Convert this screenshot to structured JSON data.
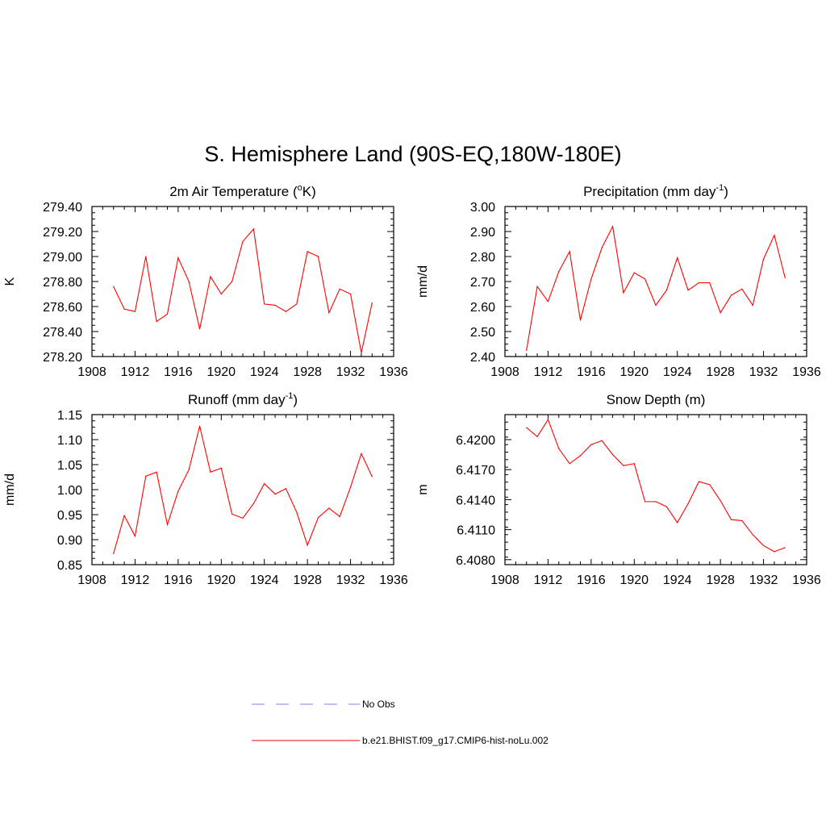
{
  "figure": {
    "title": "S. Hemisphere Land (90S-EQ,180W-180E)"
  },
  "legend": {
    "items": [
      {
        "label": "No Obs",
        "color": "#9999ff",
        "style": "dashed"
      },
      {
        "label": "b.e21.BHIST.f09_g17.CMIP6-hist-noLu.002",
        "color": "#ff0000",
        "style": "solid"
      }
    ]
  },
  "chart_data": [
    {
      "type": "line",
      "title": "2m Air Temperature (°K)",
      "title_main": "2m Air Temperature (",
      "title_sup": "o",
      "title_tail": "K)",
      "ylabel": "K",
      "xlabel": "",
      "xlim": [
        1908,
        1936
      ],
      "ylim": [
        278.2,
        279.4
      ],
      "xticks": [
        1908,
        1912,
        1916,
        1920,
        1924,
        1928,
        1932,
        1936
      ],
      "yticks": [
        "278.20",
        "278.40",
        "278.60",
        "278.80",
        "279.00",
        "279.20",
        "279.40"
      ],
      "yminor": 0.05,
      "series": [
        {
          "name": "b.e21.BHIST.f09_g17.CMIP6-hist-noLu.002",
          "color": "#ff0000",
          "x": [
            1910,
            1911,
            1912,
            1913,
            1914,
            1915,
            1916,
            1917,
            1918,
            1919,
            1920,
            1921,
            1922,
            1923,
            1924,
            1925,
            1926,
            1927,
            1928,
            1929,
            1930,
            1931,
            1932,
            1933,
            1934
          ],
          "y": [
            278.76,
            278.58,
            278.56,
            279.0,
            278.48,
            278.54,
            278.99,
            278.8,
            278.42,
            278.84,
            278.7,
            278.8,
            279.12,
            279.22,
            278.62,
            278.61,
            278.56,
            278.62,
            279.04,
            279.0,
            278.55,
            278.74,
            278.7,
            278.23,
            278.63
          ]
        }
      ]
    },
    {
      "type": "line",
      "title": "Precipitation (mm day-1)",
      "title_main": "Precipitation (mm day",
      "title_sup": "-1",
      "title_tail": ")",
      "ylabel": "mm/d",
      "xlabel": "",
      "xlim": [
        1908,
        1936
      ],
      "ylim": [
        2.4,
        3.0
      ],
      "xticks": [
        1908,
        1912,
        1916,
        1920,
        1924,
        1928,
        1932,
        1936
      ],
      "yticks": [
        "2.40",
        "2.50",
        "2.60",
        "2.70",
        "2.80",
        "2.90",
        "3.00"
      ],
      "yminor": 0.025,
      "series": [
        {
          "name": "b.e21.BHIST.f09_g17.CMIP6-hist-noLu.002",
          "color": "#ff0000",
          "x": [
            1910,
            1911,
            1912,
            1913,
            1914,
            1915,
            1916,
            1917,
            1918,
            1919,
            1920,
            1921,
            1922,
            1923,
            1924,
            1925,
            1926,
            1927,
            1928,
            1929,
            1930,
            1931,
            1932,
            1933,
            1934
          ],
          "y": [
            2.425,
            2.68,
            2.62,
            2.74,
            2.82,
            2.545,
            2.71,
            2.835,
            2.92,
            2.655,
            2.735,
            2.71,
            2.605,
            2.665,
            2.795,
            2.665,
            2.695,
            2.695,
            2.575,
            2.645,
            2.67,
            2.605,
            2.79,
            2.885,
            2.715
          ]
        }
      ]
    },
    {
      "type": "line",
      "title": "Runoff (mm day-1)",
      "title_main": "Runoff (mm day",
      "title_sup": "-1",
      "title_tail": ")",
      "ylabel": "mm/d",
      "xlabel": "",
      "xlim": [
        1908,
        1936
      ],
      "ylim": [
        0.85,
        1.15
      ],
      "xticks": [
        1908,
        1912,
        1916,
        1920,
        1924,
        1928,
        1932,
        1936
      ],
      "yticks": [
        "0.85",
        "0.90",
        "0.95",
        "1.00",
        "1.05",
        "1.10",
        "1.15"
      ],
      "yminor": 0.0125,
      "series": [
        {
          "name": "b.e21.BHIST.f09_g17.CMIP6-hist-noLu.002",
          "color": "#ff0000",
          "x": [
            1910,
            1911,
            1912,
            1913,
            1914,
            1915,
            1916,
            1917,
            1918,
            1919,
            1920,
            1921,
            1922,
            1923,
            1924,
            1925,
            1926,
            1927,
            1928,
            1929,
            1930,
            1931,
            1932,
            1933,
            1934
          ],
          "y": [
            0.872,
            0.948,
            0.907,
            1.027,
            1.035,
            0.93,
            0.997,
            1.04,
            1.127,
            1.035,
            1.043,
            0.951,
            0.943,
            0.972,
            1.012,
            0.991,
            1.002,
            0.955,
            0.889,
            0.944,
            0.963,
            0.946,
            1.005,
            1.072,
            1.026
          ]
        }
      ]
    },
    {
      "type": "line",
      "title": "Snow Depth (m)",
      "title_main": "Snow Depth (m)",
      "title_sup": "",
      "title_tail": "",
      "ylabel": "m",
      "xlabel": "",
      "xlim": [
        1908,
        1936
      ],
      "ylim": [
        6.4075,
        6.4225
      ],
      "xticks": [
        1908,
        1912,
        1916,
        1920,
        1924,
        1928,
        1932,
        1936
      ],
      "yticks": [
        "6.4080",
        "6.4110",
        "6.4140",
        "6.4170",
        "6.4200"
      ],
      "ytickvals": [
        6.408,
        6.411,
        6.414,
        6.417,
        6.42
      ],
      "yminor": 0.00075,
      "series": [
        {
          "name": "b.e21.BHIST.f09_g17.CMIP6-hist-noLu.002",
          "color": "#ff0000",
          "x": [
            1910,
            1911,
            1912,
            1913,
            1914,
            1915,
            1916,
            1917,
            1918,
            1919,
            1920,
            1921,
            1922,
            1923,
            1924,
            1925,
            1926,
            1927,
            1928,
            1929,
            1930,
            1931,
            1932,
            1933,
            1934
          ],
          "y": [
            6.4212,
            6.4203,
            6.422,
            6.4191,
            6.4176,
            6.4184,
            6.4195,
            6.4199,
            6.4185,
            6.4174,
            6.4176,
            6.4138,
            6.4138,
            6.4133,
            6.4117,
            6.4136,
            6.4158,
            6.4155,
            6.4139,
            6.412,
            6.4119,
            6.4105,
            6.4094,
            6.4088,
            6.4092
          ]
        }
      ]
    }
  ]
}
